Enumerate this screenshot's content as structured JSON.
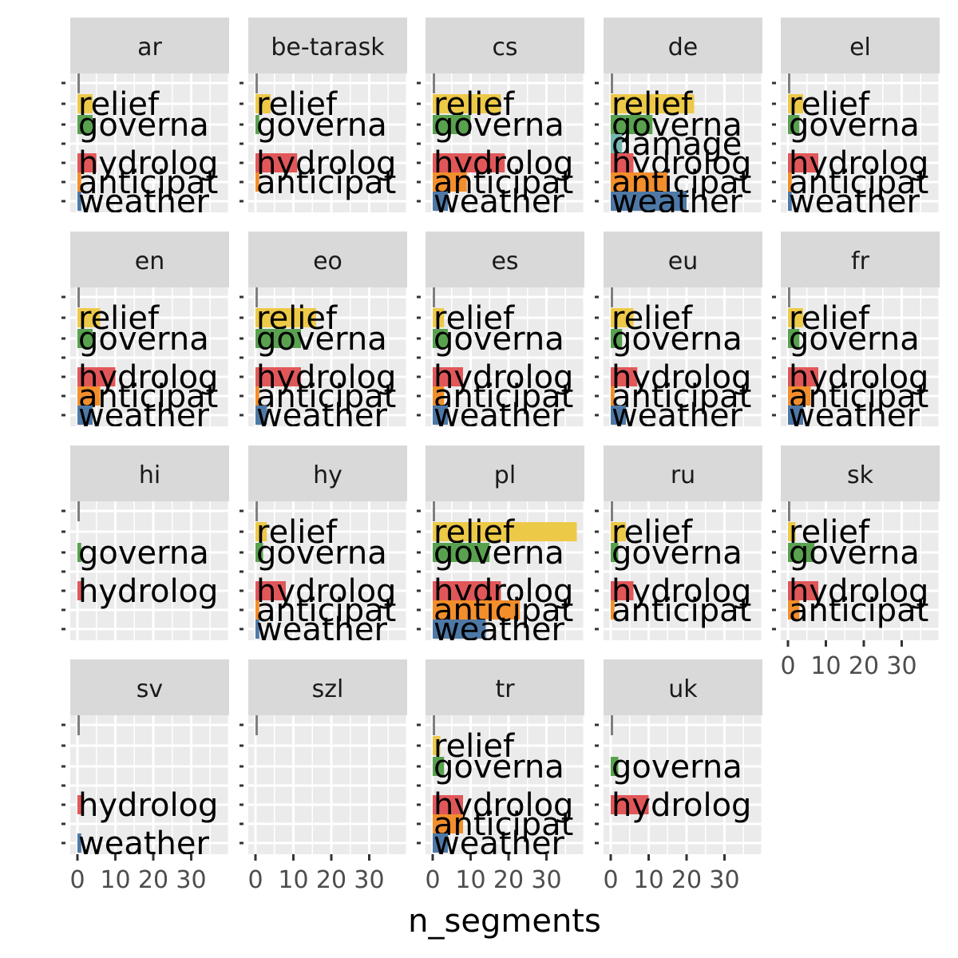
{
  "chart_data": {
    "type": "bar",
    "orientation": "horizontal",
    "xlabel": "n_segments",
    "ylabel": "",
    "xlim": [
      0,
      40
    ],
    "x_ticks": [
      0,
      10,
      20,
      30
    ],
    "x_tick_labels": [
      "0",
      "10",
      "20",
      "30"
    ],
    "grid": true,
    "legend": "none",
    "categories": [
      "weather",
      "anticipation",
      "hydrology",
      "damage",
      "governance",
      "relief",
      "other"
    ],
    "category_colors": {
      "weather": "#4e79a7",
      "anticipation": "#f28e2b",
      "hydrology": "#e15759",
      "damage": "#76b7b2",
      "governance": "#59a14f",
      "relief": "#edc948",
      "other": "#7f7f7f"
    },
    "panels": [
      {
        "name": "ar",
        "values": {
          "other": 0.2,
          "relief": 4,
          "governance": 4,
          "hydrology": 5,
          "anticipation": 1,
          "weather": 1
        }
      },
      {
        "name": "be-tarask",
        "values": {
          "other": 0.2,
          "relief": 4,
          "governance": 1,
          "hydrology": 11,
          "anticipation": 1
        }
      },
      {
        "name": "cs",
        "values": {
          "other": 0.2,
          "relief": 18,
          "governance": 10,
          "hydrology": 19,
          "anticipation": 9,
          "weather": 4
        }
      },
      {
        "name": "de",
        "values": {
          "other": 0.2,
          "relief": 22,
          "governance": 11,
          "damage": 3,
          "hydrology": 6,
          "anticipation": 15,
          "weather": 20
        }
      },
      {
        "name": "el",
        "values": {
          "other": 0.2,
          "relief": 4,
          "governance": 3,
          "hydrology": 8,
          "anticipation": 1,
          "weather": 1
        }
      },
      {
        "name": "en",
        "values": {
          "other": 0.2,
          "relief": 6,
          "governance": 4,
          "hydrology": 10,
          "anticipation": 6,
          "weather": 4
        }
      },
      {
        "name": "eo",
        "values": {
          "other": 0.2,
          "relief": 16,
          "governance": 12,
          "hydrology": 12,
          "anticipation": 1,
          "weather": 3
        }
      },
      {
        "name": "es",
        "values": {
          "other": 0.2,
          "relief": 3,
          "governance": 4,
          "hydrology": 8,
          "anticipation": 3,
          "weather": 4
        }
      },
      {
        "name": "eu",
        "values": {
          "other": 0.2,
          "relief": 6,
          "governance": 3,
          "hydrology": 7,
          "anticipation": 1,
          "weather": 4
        }
      },
      {
        "name": "fr",
        "values": {
          "other": 0.2,
          "relief": 4,
          "governance": 3,
          "hydrology": 8,
          "anticipation": 6,
          "weather": 4
        }
      },
      {
        "name": "hi",
        "values": {
          "other": 0.2,
          "governance": 1,
          "hydrology": 1
        }
      },
      {
        "name": "hy",
        "values": {
          "other": 0.2,
          "relief": 3,
          "governance": 2,
          "hydrology": 8,
          "anticipation": 1,
          "weather": 1
        }
      },
      {
        "name": "pl",
        "values": {
          "other": 0.2,
          "relief": 38,
          "governance": 15,
          "hydrology": 18,
          "anticipation": 23,
          "weather": 14
        }
      },
      {
        "name": "ru",
        "values": {
          "other": 0.2,
          "relief": 4,
          "governance": 2,
          "hydrology": 6,
          "anticipation": 1
        }
      },
      {
        "name": "sk",
        "values": {
          "other": 0.2,
          "relief": 2,
          "governance": 7,
          "hydrology": 8,
          "anticipation": 3
        }
      },
      {
        "name": "sv",
        "values": {
          "other": 0.2,
          "hydrology": 1,
          "weather": 1
        }
      },
      {
        "name": "szl",
        "values": {
          "other": 0.2
        }
      },
      {
        "name": "tr",
        "values": {
          "other": 0.2,
          "relief": 2,
          "governance": 3,
          "hydrology": 8,
          "anticipation": 8,
          "weather": 4
        }
      },
      {
        "name": "uk",
        "values": {
          "other": 0.2,
          "governance": 2,
          "hydrology": 10
        }
      }
    ],
    "bar_labels": {
      "weather": "weather",
      "anticipation": "anticipat",
      "hydrology": "hydrolog",
      "damage": "damage",
      "governance": "governa",
      "relief": "relief"
    }
  }
}
